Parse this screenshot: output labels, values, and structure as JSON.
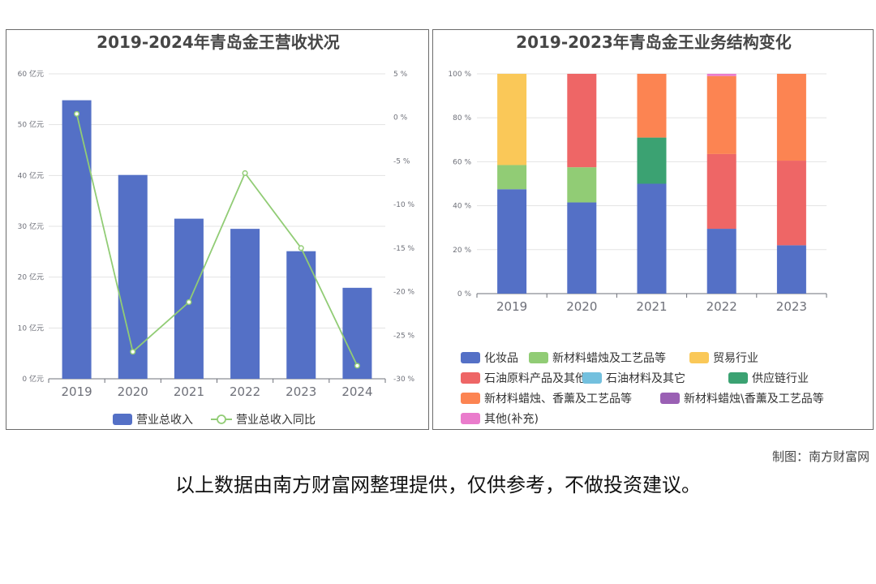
{
  "credit": "制图：南方财富网",
  "disclaimer": "以上数据由南方财富网整理提供，仅供参考，不做投资建议。",
  "chart_data": [
    {
      "type": "bar",
      "title": "2019-2024年青岛金王营收状况",
      "categories": [
        "2019",
        "2020",
        "2021",
        "2022",
        "2023",
        "2024"
      ],
      "y_left": {
        "ylim": [
          0,
          60
        ],
        "ticks": [
          "0 亿元",
          "10 亿元",
          "20 亿元",
          "30 亿元",
          "40 亿元",
          "50 亿元",
          "60 亿元"
        ]
      },
      "y_right": {
        "ylim": [
          -30,
          5
        ],
        "ticks": [
          "5 %",
          "0 %",
          "-5 %",
          "-10 %",
          "-15 %",
          "-20 %",
          "-25 %",
          "-30 %"
        ]
      },
      "series": [
        {
          "name": "营业总收入",
          "type": "bar",
          "axis": "left",
          "color": "#5470c6",
          "values": [
            54.8,
            40.1,
            31.5,
            29.5,
            25.1,
            17.9
          ]
        },
        {
          "name": "营业总收入同比",
          "type": "line",
          "axis": "right",
          "color": "#91cc75",
          "values": [
            0.4,
            -26.9,
            -21.2,
            -6.4,
            -15.0,
            -28.5
          ]
        }
      ],
      "legend": "bottom-center",
      "grid": true
    },
    {
      "type": "bar",
      "stacked": true,
      "title": "2019-2023年青岛金王业务结构变化",
      "categories": [
        "2019",
        "2020",
        "2021",
        "2022",
        "2023"
      ],
      "ylim": [
        0,
        100
      ],
      "y_ticks": [
        "0 %",
        "20 %",
        "40 %",
        "60 %",
        "80 %",
        "100 %"
      ],
      "series": [
        {
          "name": "化妆品",
          "color": "#5470c6",
          "values": [
            47.5,
            41.5,
            50.0,
            29.5,
            22.0
          ]
        },
        {
          "name": "新材料蜡烛及工艺品等",
          "color": "#91cc75",
          "values": [
            11.0,
            16.0,
            0,
            0,
            0
          ]
        },
        {
          "name": "贸易行业",
          "color": "#fac858",
          "values": [
            41.5,
            0,
            0,
            0,
            0
          ]
        },
        {
          "name": "石油原料产品及其他",
          "color": "#ee6666",
          "values": [
            0,
            42.5,
            0,
            34.0,
            38.5
          ]
        },
        {
          "name": "石油材料及其它",
          "color": "#73c0de",
          "values": [
            0,
            0,
            0,
            0,
            0
          ]
        },
        {
          "name": "供应链行业",
          "color": "#3ba272",
          "values": [
            0,
            0,
            21.0,
            0,
            0
          ]
        },
        {
          "name": "新材料蜡烛、香薰及工艺品等",
          "color": "#fc8452",
          "values": [
            0,
            0,
            29.0,
            35.5,
            39.5
          ]
        },
        {
          "name": "新材料蜡烛\\香薰及工艺品等",
          "color": "#9a60b4",
          "values": [
            0,
            0,
            0,
            0,
            0
          ]
        },
        {
          "name": "其他(补充)",
          "color": "#ea7ccc",
          "values": [
            0,
            0,
            0,
            1.0,
            0
          ]
        }
      ],
      "legend": "bottom-left"
    }
  ]
}
